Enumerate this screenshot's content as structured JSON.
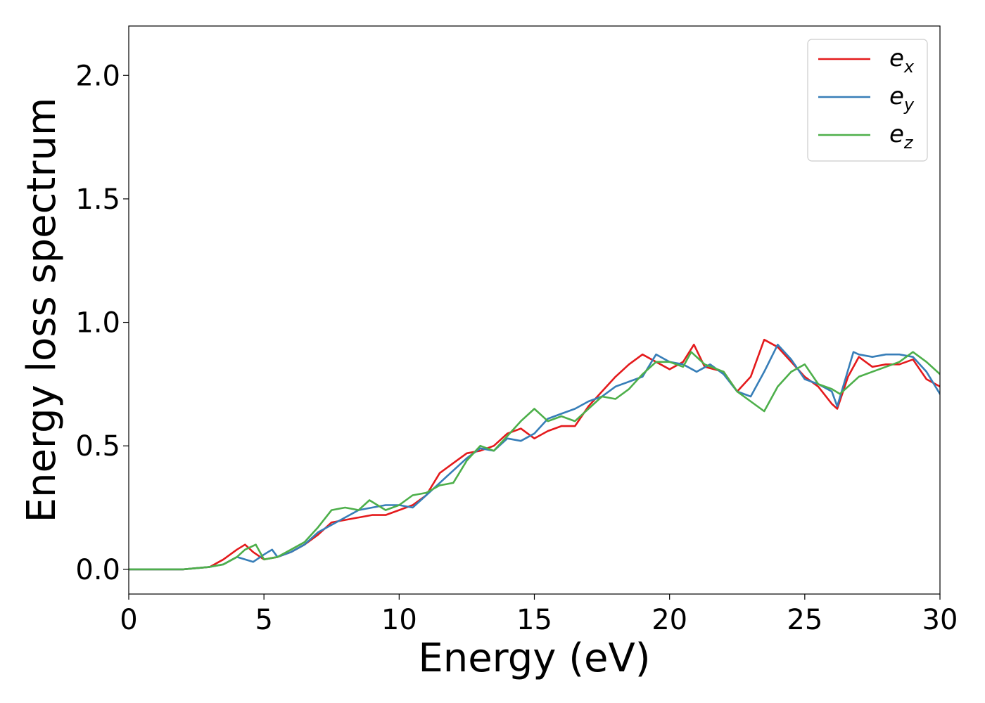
{
  "chart_data": {
    "type": "line",
    "title": "",
    "xlabel": "Energy (eV)",
    "ylabel": "Energy loss spectrum",
    "xlim": [
      0,
      30
    ],
    "ylim": [
      -0.1,
      2.2
    ],
    "xticks": [
      0,
      5,
      10,
      15,
      20,
      25,
      30
    ],
    "xtick_labels": [
      "0",
      "5",
      "10",
      "15",
      "20",
      "25",
      "30"
    ],
    "yticks": [
      0.0,
      0.5,
      1.0,
      1.5,
      2.0
    ],
    "ytick_labels": [
      "0.0",
      "0.5",
      "1.0",
      "1.5",
      "2.0"
    ],
    "grid": false,
    "legend_position": "top-right",
    "series": [
      {
        "name": "e_x",
        "legend_base": "e",
        "legend_sub": "x",
        "color": "#e41a1c",
        "x": [
          0,
          1,
          2,
          3,
          3.5,
          4,
          4.3,
          4.6,
          5,
          5.5,
          6,
          6.5,
          7,
          7.5,
          8,
          8.5,
          9,
          9.5,
          10,
          10.5,
          11,
          11.5,
          12,
          12.5,
          13,
          13.5,
          14,
          14.5,
          15,
          15.5,
          16,
          16.5,
          17,
          17.5,
          18,
          18.5,
          19,
          19.5,
          20,
          20.5,
          20.9,
          21.3,
          22,
          22.5,
          23,
          23.5,
          24,
          24.5,
          25,
          25.5,
          26,
          26.2,
          26.6,
          27,
          27.5,
          28,
          28.5,
          29,
          29.5,
          30
        ],
        "y": [
          0,
          0,
          0,
          0.01,
          0.04,
          0.08,
          0.1,
          0.07,
          0.04,
          0.05,
          0.07,
          0.1,
          0.14,
          0.19,
          0.2,
          0.21,
          0.22,
          0.22,
          0.24,
          0.26,
          0.3,
          0.39,
          0.43,
          0.47,
          0.48,
          0.5,
          0.55,
          0.57,
          0.53,
          0.56,
          0.58,
          0.58,
          0.66,
          0.72,
          0.78,
          0.83,
          0.87,
          0.84,
          0.81,
          0.84,
          0.91,
          0.82,
          0.8,
          0.72,
          0.78,
          0.93,
          0.9,
          0.84,
          0.78,
          0.74,
          0.67,
          0.65,
          0.78,
          0.86,
          0.82,
          0.83,
          0.83,
          0.85,
          0.77,
          0.74
        ]
      },
      {
        "name": "e_y",
        "legend_base": "e",
        "legend_sub": "y",
        "color": "#377eb8",
        "x": [
          0,
          1,
          2,
          3,
          3.5,
          4,
          4.3,
          4.6,
          5,
          5.3,
          5.5,
          6,
          6.5,
          7,
          7.5,
          8,
          8.5,
          9,
          9.5,
          10,
          10.5,
          11,
          11.5,
          12,
          12.5,
          13,
          13.5,
          14,
          14.5,
          15,
          15.5,
          16,
          16.5,
          17,
          17.5,
          18,
          18.5,
          19,
          19.5,
          20,
          20.5,
          21,
          21.5,
          22,
          22.5,
          23,
          23.5,
          24,
          24.5,
          25,
          25.5,
          26,
          26.2,
          26.8,
          27,
          27.5,
          28,
          28.5,
          29,
          29.5,
          30
        ],
        "y": [
          0,
          0,
          0,
          0.01,
          0.02,
          0.05,
          0.04,
          0.03,
          0.06,
          0.08,
          0.05,
          0.07,
          0.1,
          0.15,
          0.18,
          0.21,
          0.24,
          0.25,
          0.26,
          0.26,
          0.25,
          0.3,
          0.35,
          0.4,
          0.45,
          0.49,
          0.48,
          0.53,
          0.52,
          0.55,
          0.61,
          0.63,
          0.65,
          0.68,
          0.7,
          0.74,
          0.76,
          0.78,
          0.87,
          0.84,
          0.83,
          0.8,
          0.83,
          0.79,
          0.72,
          0.7,
          0.8,
          0.91,
          0.85,
          0.77,
          0.75,
          0.72,
          0.66,
          0.88,
          0.87,
          0.86,
          0.87,
          0.87,
          0.86,
          0.8,
          0.71
        ]
      },
      {
        "name": "e_z",
        "legend_base": "e",
        "legend_sub": "z",
        "color": "#4daf4a",
        "x": [
          0,
          1,
          2,
          3,
          3.5,
          4,
          4.3,
          4.7,
          5,
          5.5,
          6,
          6.5,
          7,
          7.5,
          8,
          8.5,
          8.9,
          9.5,
          10,
          10.5,
          11,
          11.5,
          12,
          12.5,
          13,
          13.5,
          14,
          14.5,
          15,
          15.5,
          16,
          16.5,
          17,
          17.5,
          18,
          18.5,
          19,
          19.5,
          20,
          20.5,
          20.8,
          21.3,
          22,
          22.5,
          23,
          23.5,
          24,
          24.5,
          25,
          25.5,
          26,
          26.3,
          27,
          27.5,
          28,
          28.5,
          29,
          29.5,
          30
        ],
        "y": [
          0,
          0,
          0,
          0.01,
          0.02,
          0.05,
          0.08,
          0.1,
          0.04,
          0.05,
          0.08,
          0.11,
          0.17,
          0.24,
          0.25,
          0.24,
          0.28,
          0.24,
          0.26,
          0.3,
          0.31,
          0.34,
          0.35,
          0.44,
          0.5,
          0.48,
          0.54,
          0.6,
          0.65,
          0.6,
          0.62,
          0.6,
          0.65,
          0.7,
          0.69,
          0.73,
          0.79,
          0.84,
          0.84,
          0.82,
          0.88,
          0.83,
          0.8,
          0.72,
          0.68,
          0.64,
          0.74,
          0.8,
          0.83,
          0.75,
          0.73,
          0.71,
          0.78,
          0.8,
          0.82,
          0.84,
          0.88,
          0.84,
          0.79
        ]
      }
    ]
  }
}
